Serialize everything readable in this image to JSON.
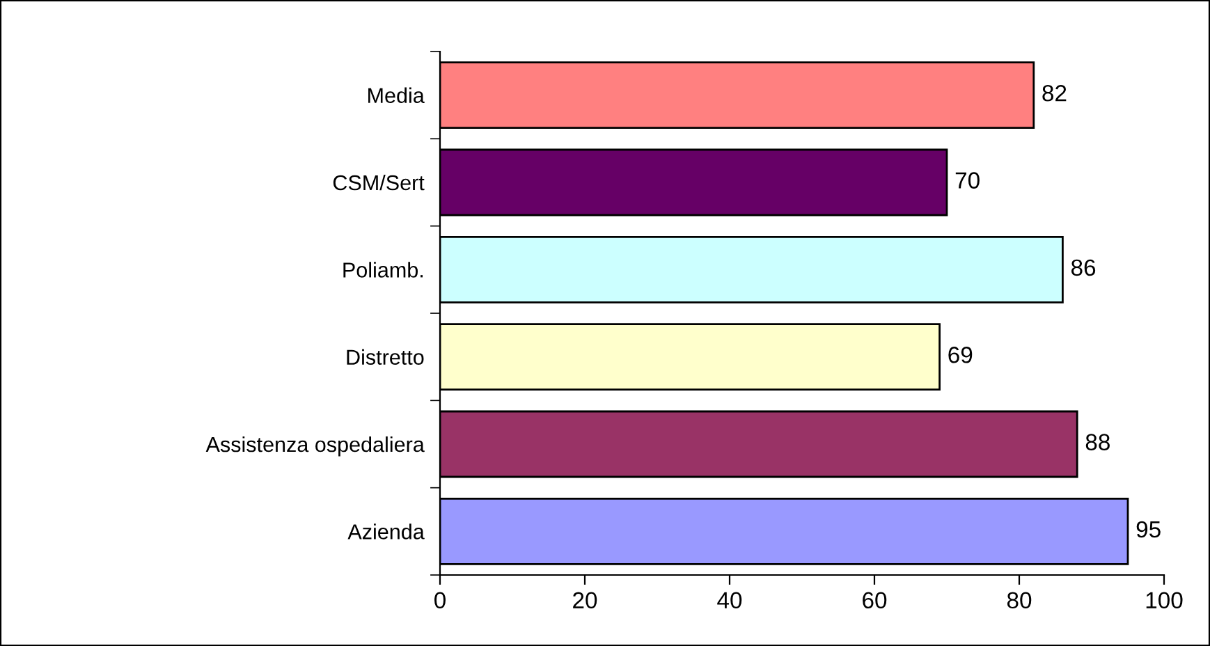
{
  "chart_data": {
    "type": "bar",
    "orientation": "horizontal",
    "categories": [
      "Media",
      "CSM/Sert",
      "Poliamb.",
      "Distretto",
      "Assistenza ospedaliera",
      "Azienda"
    ],
    "values": [
      82,
      70,
      86,
      69,
      88,
      95
    ],
    "colors": [
      "#ff8080",
      "#660066",
      "#ccffff",
      "#ffffcc",
      "#993366",
      "#9999ff"
    ],
    "xlim": [
      0,
      100
    ],
    "xticks": [
      0,
      20,
      40,
      60,
      80,
      100
    ],
    "grid": false,
    "data_labels": true
  }
}
